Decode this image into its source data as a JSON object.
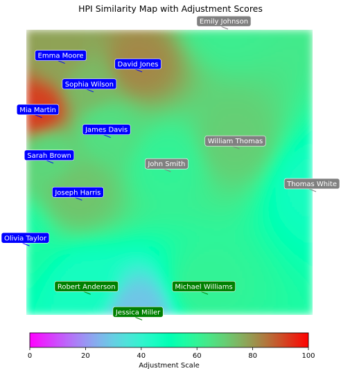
{
  "chart_data": {
    "type": "heatmap",
    "title": "HPI Similarity Map with Adjustment Scores",
    "colorbar": {
      "label": "Adjustment Scale",
      "range": [
        0,
        100
      ],
      "ticks": [
        0,
        20,
        40,
        60,
        80,
        100
      ],
      "colormap": "rainbow",
      "orientation": "horizontal",
      "placement": "bottom"
    },
    "axes_visible": false,
    "grid": false,
    "plot_range": {
      "x": [
        0,
        1
      ],
      "y": [
        0,
        1
      ]
    },
    "points": [
      {
        "name": "Emily Johnson",
        "x": 0.69,
        "y": 1.03,
        "score": 62,
        "label_color": "#808080"
      },
      {
        "name": "Emma Moore",
        "x": 0.12,
        "y": 0.91,
        "score": 78,
        "label_color": "#0000ff"
      },
      {
        "name": "David Jones",
        "x": 0.39,
        "y": 0.88,
        "score": 82,
        "label_color": "#0000ff"
      },
      {
        "name": "Sophia Wilson",
        "x": 0.22,
        "y": 0.81,
        "score": 74,
        "label_color": "#0000ff"
      },
      {
        "name": "Mia Martin",
        "x": 0.04,
        "y": 0.72,
        "score": 92,
        "label_color": "#0000ff"
      },
      {
        "name": "James Davis",
        "x": 0.28,
        "y": 0.65,
        "score": 66,
        "label_color": "#0000ff"
      },
      {
        "name": "William Thomas",
        "x": 0.73,
        "y": 0.61,
        "score": 70,
        "label_color": "#808080"
      },
      {
        "name": "Sarah Brown",
        "x": 0.08,
        "y": 0.56,
        "score": 68,
        "label_color": "#0000ff"
      },
      {
        "name": "John Smith",
        "x": 0.49,
        "y": 0.53,
        "score": 60,
        "label_color": "#808080"
      },
      {
        "name": "Thomas White",
        "x": 1.0,
        "y": 0.46,
        "score": 46,
        "label_color": "#808080"
      },
      {
        "name": "Joseph Harris",
        "x": 0.18,
        "y": 0.43,
        "score": 72,
        "label_color": "#0000ff"
      },
      {
        "name": "Olivia Taylor",
        "x": -0.04,
        "y": 0.27,
        "score": 55,
        "label_color": "#0000ff"
      },
      {
        "name": "Michael Williams",
        "x": 0.62,
        "y": 0.1,
        "score": 60,
        "label_color": "#008000"
      },
      {
        "name": "Robert Anderson",
        "x": 0.21,
        "y": 0.1,
        "score": 46,
        "label_color": "#008000"
      },
      {
        "name": "Jessica Miller",
        "x": 0.39,
        "y": 0.01,
        "score": 28,
        "label_color": "#008000"
      }
    ]
  }
}
